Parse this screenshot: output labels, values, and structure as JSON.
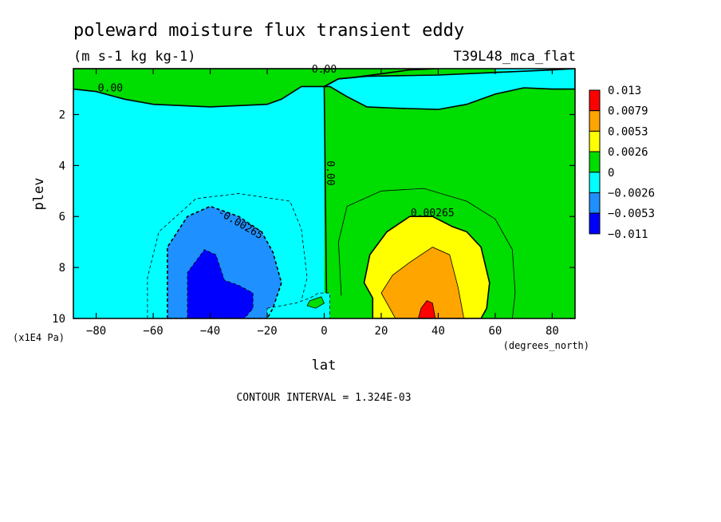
{
  "title": "poleward moisture flux transient eddy",
  "units": "(m s-1 kg kg-1)",
  "dataset": "T39L48_mca_flat",
  "footer": "CONTOUR INTERVAL = 1.324E-03",
  "chart_data": {
    "type": "heatmap",
    "title": "poleward moisture flux transient eddy",
    "xlabel": "lat",
    "x_units": "(degrees_north)",
    "ylabel": "plev",
    "y_units": "(x1E4 Pa)",
    "xlim": [
      -88,
      88
    ],
    "ylim": [
      10,
      0.2
    ],
    "x_ticks": [
      -80,
      -60,
      -40,
      -20,
      0,
      20,
      40,
      60,
      80
    ],
    "x_tick_labels": [
      "−80",
      "−60",
      "−40",
      "−20",
      "0",
      "20",
      "40",
      "60",
      "80"
    ],
    "y_ticks": [
      2,
      4,
      6,
      8,
      10
    ],
    "y_tick_labels": [
      "2",
      "4",
      "6",
      "8",
      "10"
    ],
    "contour_interval": 0.001324,
    "colorbar": {
      "levels": [
        "0.013",
        "0.0079",
        "0.0053",
        "0.0026",
        "0",
        "−0.0026",
        "−0.0053",
        "−0.011"
      ],
      "colors": [
        "#ff0000",
        "#ffa500",
        "#ffff00",
        "#00dd00",
        "#00ffff",
        "#1e90ff",
        "#0000ff"
      ]
    },
    "contour_labels": [
      {
        "text": "0.00",
        "lat": -75,
        "plev": 1.1
      },
      {
        "text": "0.00",
        "lat": 0,
        "plev": 0.35
      },
      {
        "text": "0.00",
        "lat": 1,
        "plev": 4.3
      },
      {
        "text": "-0.00265",
        "lat": -30,
        "plev": 6.4
      },
      {
        "text": "0.00265",
        "lat": 38,
        "plev": 6.0
      }
    ],
    "regions": [
      {
        "name": "positive-lobe",
        "color": "#00dd00",
        "polygon": [
          [
            0,
            0.2
          ],
          [
            88,
            0.2
          ],
          [
            88,
            10
          ],
          [
            0,
            10
          ]
        ]
      },
      {
        "name": "negative-lobe",
        "color": "#00ffff",
        "polygon": [
          [
            -88,
            0.2
          ],
          [
            0,
            0.2
          ],
          [
            0,
            10
          ],
          [
            -88,
            10
          ]
        ]
      },
      {
        "name": "upper-green-band",
        "color": "#00dd00",
        "polygon": [
          [
            -88,
            0.2
          ],
          [
            -88,
            1.0
          ],
          [
            -80,
            1.1
          ],
          [
            -70,
            1.4
          ],
          [
            -60,
            1.6
          ],
          [
            -40,
            1.7
          ],
          [
            -20,
            1.6
          ],
          [
            -15,
            1.4
          ],
          [
            -8,
            0.9
          ],
          [
            0,
            0.9
          ],
          [
            5,
            0.6
          ],
          [
            10,
            0.55
          ],
          [
            20,
            0.4
          ],
          [
            30,
            0.25
          ],
          [
            40,
            0.2
          ]
        ]
      },
      {
        "name": "upper-cyan-band",
        "color": "#00ffff",
        "polygon": [
          [
            0,
            0.9
          ],
          [
            5,
            0.6
          ],
          [
            15,
            0.5
          ],
          [
            40,
            0.45
          ],
          [
            60,
            0.35
          ],
          [
            80,
            0.25
          ],
          [
            88,
            0.2
          ],
          [
            88,
            1.0
          ],
          [
            80,
            1.0
          ],
          [
            70,
            0.95
          ],
          [
            60,
            1.2
          ],
          [
            50,
            1.6
          ],
          [
            40,
            1.8
          ],
          [
            25,
            1.75
          ],
          [
            15,
            1.7
          ],
          [
            8,
            1.3
          ],
          [
            2,
            0.9
          ]
        ]
      },
      {
        "name": "top-right-cyan",
        "color": "#00ffff",
        "polygon": [
          [
            60,
            0.2
          ],
          [
            88,
            0.2
          ],
          [
            88,
            0.3
          ],
          [
            60,
            0.3
          ]
        ]
      },
      {
        "name": "neg-1",
        "color": "#1e90ff",
        "polygon": [
          [
            -55,
            10
          ],
          [
            -55,
            7.2
          ],
          [
            -48,
            6.0
          ],
          [
            -40,
            5.6
          ],
          [
            -30,
            6.0
          ],
          [
            -22,
            6.6
          ],
          [
            -18,
            7.4
          ],
          [
            -15,
            8.6
          ],
          [
            -18,
            9.6
          ],
          [
            -20,
            10
          ]
        ]
      },
      {
        "name": "neg-2",
        "color": "#0000ff",
        "polygon": [
          [
            -48,
            10
          ],
          [
            -48,
            8.2
          ],
          [
            -42,
            7.3
          ],
          [
            -38,
            7.5
          ],
          [
            -35,
            8.5
          ],
          [
            -30,
            8.7
          ],
          [
            -25,
            9.0
          ],
          [
            -25,
            9.6
          ],
          [
            -28,
            10
          ]
        ]
      },
      {
        "name": "pos-1",
        "color": "#ffff00",
        "polygon": [
          [
            17,
            10
          ],
          [
            17,
            9.2
          ],
          [
            14,
            8.6
          ],
          [
            16,
            7.5
          ],
          [
            22,
            6.6
          ],
          [
            30,
            6.0
          ],
          [
            38,
            6.0
          ],
          [
            45,
            6.4
          ],
          [
            50,
            6.6
          ],
          [
            55,
            7.2
          ],
          [
            58,
            8.6
          ],
          [
            57,
            9.6
          ],
          [
            55,
            10
          ]
        ]
      },
      {
        "name": "pos-2",
        "color": "#ffa500",
        "polygon": [
          [
            25,
            10
          ],
          [
            22,
            9.4
          ],
          [
            20,
            9.0
          ],
          [
            24,
            8.3
          ],
          [
            30,
            7.8
          ],
          [
            38,
            7.2
          ],
          [
            44,
            7.5
          ],
          [
            47,
            8.8
          ],
          [
            49,
            10
          ]
        ]
      },
      {
        "name": "pos-3",
        "color": "#ff0000",
        "polygon": [
          [
            33,
            10
          ],
          [
            34,
            9.6
          ],
          [
            36,
            9.3
          ],
          [
            38,
            9.4
          ],
          [
            39,
            10
          ]
        ]
      },
      {
        "name": "eq-cyan-island",
        "color": "#00ffff",
        "polygon": [
          [
            -20,
            9.6
          ],
          [
            -10,
            9.4
          ],
          [
            -5,
            9.2
          ],
          [
            -2,
            9.0
          ],
          [
            2,
            9.0
          ],
          [
            2,
            10
          ],
          [
            -20,
            10
          ]
        ]
      },
      {
        "name": "eq-green-blob",
        "color": "#00dd00",
        "polygon": [
          [
            -5,
            9.3
          ],
          [
            -1,
            9.15
          ],
          [
            0,
            9.4
          ],
          [
            -3,
            9.6
          ],
          [
            -6,
            9.5
          ]
        ]
      }
    ]
  }
}
